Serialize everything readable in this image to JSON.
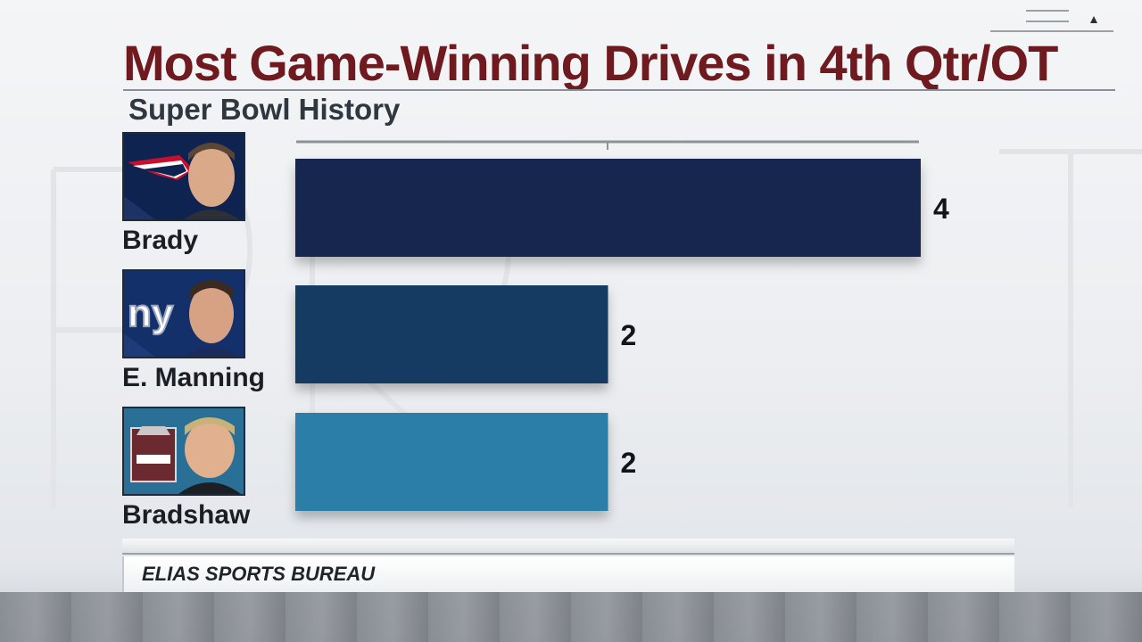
{
  "header": {
    "title": "Most Game-Winning Drives in 4th Qtr/OT",
    "subtitle": "Super Bowl History"
  },
  "players": [
    {
      "name": "Brady",
      "team_logo": "patriots-logo",
      "photo": "brady-headshot",
      "bar_color": "#152650"
    },
    {
      "name": "E. Manning",
      "team_logo": "giants-ny-logo",
      "photo": "manning-headshot",
      "bar_color": "#173a64"
    },
    {
      "name": "Bradshaw",
      "team_logo": "hall-of-fame-logo",
      "photo": "bradshaw-headshot",
      "bar_color": "#2a7ea8"
    }
  ],
  "chart_data": {
    "type": "bar",
    "orientation": "horizontal",
    "title": "Most Game-Winning Drives in 4th Qtr/OT",
    "subtitle": "Super Bowl History",
    "categories": [
      "Brady",
      "E. Manning",
      "Bradshaw"
    ],
    "values": [
      4,
      2,
      2
    ],
    "value_labels": [
      "4",
      "2",
      "2"
    ],
    "xlim": [
      0,
      4
    ],
    "grid": false
  },
  "footer": {
    "source": "ELIAS SPORTS BUREAU"
  },
  "colors": {
    "title": "#6e1a1f",
    "subtitle": "#2f3740"
  }
}
